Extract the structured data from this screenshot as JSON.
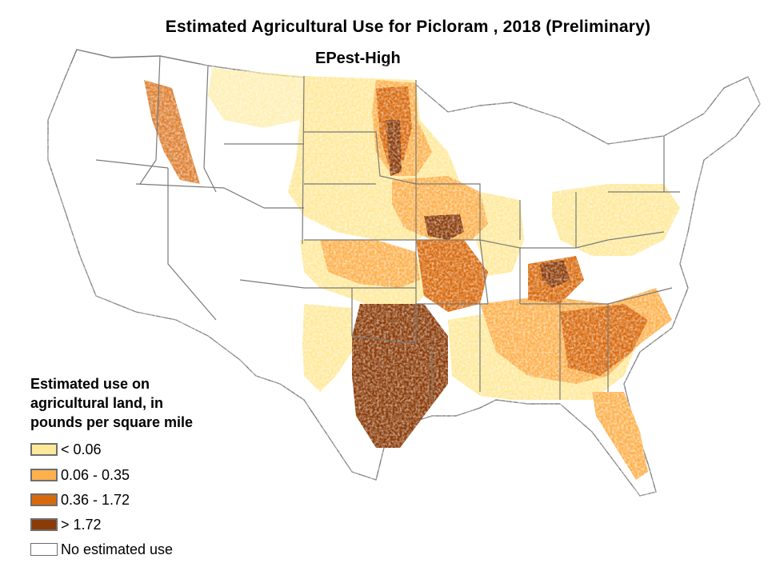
{
  "title": "Estimated Agricultural Use for Picloram , 2018 (Preliminary)",
  "subtitle": "EPest-High",
  "legend": {
    "title_lines": [
      "Estimated use on",
      "agricultural land, in",
      "pounds per square mile"
    ],
    "items": [
      {
        "label": "< 0.06",
        "color": "#fee99a"
      },
      {
        "label": "0.06 - 0.35",
        "color": "#fdb14d"
      },
      {
        "label": "0.36 - 1.72",
        "color": "#d86a0e"
      },
      {
        "label": "> 1.72",
        "color": "#8a3b08"
      },
      {
        "label": "No estimated use",
        "color": "#ffffff"
      }
    ]
  },
  "colors": {
    "state_border": "#7a7a7a",
    "background": "#ffffff"
  }
}
